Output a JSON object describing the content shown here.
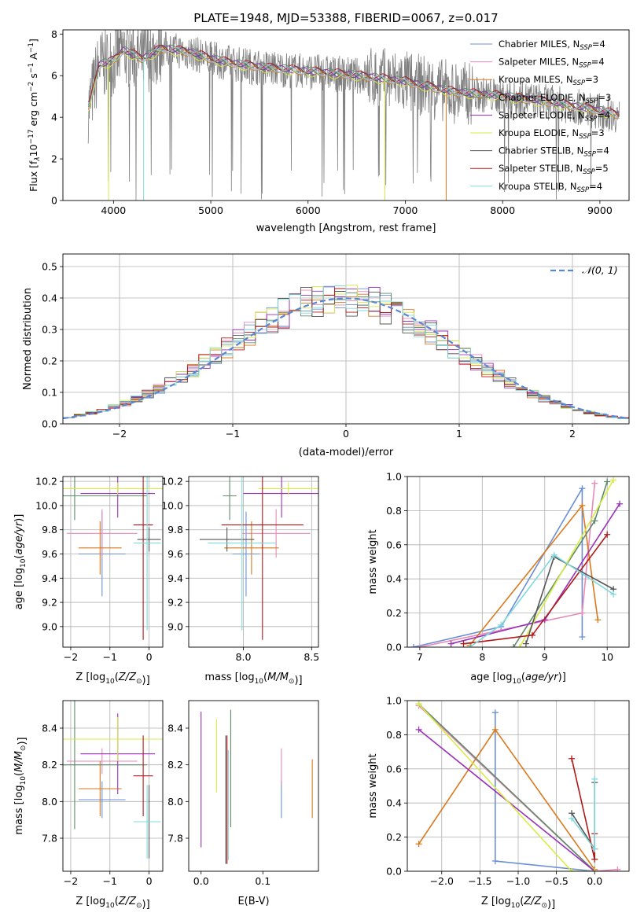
{
  "figure_title": "PLATE=1948, MJD=53388, FIBERID=0067, z=0.017",
  "colors": {
    "Chabrier MILES": "#6b8fd6",
    "Salpeter MILES": "#e88ab8",
    "Kroupa MILES": "#d9791c",
    "Chabrier ELODIE": "#5f8a6a",
    "Salpeter ELODIE": "#9b30b8",
    "Kroupa ELODIE": "#d8ec45",
    "Chabrier STELIB": "#555555",
    "Salpeter STELIB": "#b01818",
    "Kroupa STELIB": "#7fd9dc",
    "gaussian": "#5b86d4",
    "grid": "#b0b0b0"
  },
  "chart_data": [
    {
      "id": "spectrum",
      "type": "line",
      "xlabel": "wavelength [Angstrom, rest frame]",
      "ylabel_parts": [
        "Flux [f",
        "λ",
        "10",
        "−17",
        " erg cm",
        "−2",
        " s",
        "−1",
        " A",
        "−1",
        "]"
      ],
      "xlim": [
        3480,
        9300
      ],
      "ylim": [
        0,
        8.2
      ],
      "xticks": [
        4000,
        5000,
        6000,
        7000,
        8000,
        9000
      ],
      "yticks": [
        0,
        2,
        4,
        6,
        8
      ],
      "grid": false,
      "legend_position": "upper-right",
      "legend": [
        {
          "name": "Chabrier MILES",
          "nssp": "4"
        },
        {
          "name": "Salpeter MILES",
          "nssp": "4"
        },
        {
          "name": "Kroupa MILES",
          "nssp": "3"
        },
        {
          "name": "Chabrier ELODIE",
          "nssp": "3"
        },
        {
          "name": "Salpeter ELODIE",
          "nssp": "4"
        },
        {
          "name": "Kroupa ELODIE",
          "nssp": "3"
        },
        {
          "name": "Chabrier STELIB",
          "nssp": "4"
        },
        {
          "name": "Salpeter STELIB",
          "nssp": "5"
        },
        {
          "name": "Kroupa STELIB",
          "nssp": "4"
        }
      ],
      "data_envelope": {
        "wavelength": [
          3750,
          3850,
          4000,
          4100,
          4300,
          4500,
          4800,
          5000,
          5200,
          5500,
          6000,
          6500,
          7000,
          7500,
          8000,
          8500,
          9000,
          9200
        ],
        "flux": [
          4.5,
          6.5,
          6.7,
          7.2,
          6.8,
          7.3,
          7.1,
          6.8,
          6.6,
          6.4,
          6.2,
          6.0,
          5.7,
          5.2,
          5.0,
          4.7,
          4.3,
          4.1
        ]
      }
    },
    {
      "id": "residuals",
      "type": "histogram",
      "xlabel": "(data-model)/error",
      "ylabel": "Normed distribution",
      "xlim": [
        -2.5,
        2.5
      ],
      "ylim": [
        0,
        0.54
      ],
      "xticks": [
        -2,
        -1,
        0,
        1,
        2
      ],
      "yticks": [
        0.0,
        0.1,
        0.2,
        0.3,
        0.4,
        0.5
      ],
      "grid": true,
      "legend": [
        {
          "name": "𝒩(0, 1)",
          "style": "dashed"
        }
      ],
      "bin_width": 0.1,
      "gaussian": {
        "mean": 0,
        "sigma": 1
      }
    },
    {
      "id": "age_vs_Z",
      "type": "errorbar",
      "xlabel": "Z [log10(Z/Z⊙)]",
      "ylabel": "age  [log10(age/yr)]",
      "xlim": [
        -2.2,
        0.35
      ],
      "ylim": [
        8.83,
        10.24
      ],
      "xticks": [
        -2,
        -1,
        0
      ],
      "yticks": [
        9.0,
        9.2,
        9.4,
        9.6,
        9.8,
        10.0,
        10.2
      ],
      "grid": true,
      "points": [
        {
          "model": "Chabrier MILES",
          "x": -1.2,
          "xerr": 0.6,
          "y": 9.6,
          "yerr": 0.35
        },
        {
          "model": "Salpeter MILES",
          "x": -1.2,
          "xerr": 0.9,
          "y": 9.77,
          "yerr": 0.2
        },
        {
          "model": "Kroupa MILES",
          "x": -1.25,
          "xerr": 0.55,
          "y": 9.65,
          "yerr": 0.22
        },
        {
          "model": "Chabrier ELODIE",
          "x": -1.9,
          "xerr": 1.85,
          "y": 10.08,
          "yerr": 0.2
        },
        {
          "model": "Salpeter ELODIE",
          "x": -0.8,
          "xerr": 0.95,
          "y": 10.1,
          "yerr": 0.2
        },
        {
          "model": "Kroupa ELODIE",
          "x": -0.8,
          "xerr": 1.5,
          "y": 10.14,
          "yerr": 0.05
        },
        {
          "model": "Chabrier STELIB",
          "x": 0.0,
          "xerr": 0.3,
          "y": 9.72,
          "yerr": 0.1
        },
        {
          "model": "Salpeter STELIB",
          "x": -0.15,
          "xerr": 0.25,
          "y": 9.84,
          "yerr": 0.95
        },
        {
          "model": "Kroupa STELIB",
          "x": -0.05,
          "xerr": 0.35,
          "y": 9.69,
          "yerr": 0.72
        }
      ]
    },
    {
      "id": "age_vs_mass",
      "type": "errorbar",
      "xlabel": "mass [log10(M/M⊙)]",
      "ylabel": "",
      "xlim": [
        7.6,
        8.55
      ],
      "ylim": [
        8.83,
        10.24
      ],
      "xticks": [
        8.0,
        8.5
      ],
      "yticks": [
        9.0,
        9.2,
        9.4,
        9.6,
        9.8,
        10.0,
        10.2
      ],
      "grid": true,
      "points": [
        {
          "model": "Chabrier MILES",
          "x": 8.02,
          "xerr": 0.1,
          "y": 9.6,
          "yerr": 0.35
        },
        {
          "model": "Salpeter MILES",
          "x": 8.24,
          "xerr": 0.25,
          "y": 9.77,
          "yerr": 0.2
        },
        {
          "model": "Kroupa MILES",
          "x": 8.06,
          "xerr": 0.2,
          "y": 9.65,
          "yerr": 0.22
        },
        {
          "model": "Chabrier ELODIE",
          "x": 7.9,
          "xerr": 0.05,
          "y": 10.08,
          "yerr": 0.2
        },
        {
          "model": "Salpeter ELODIE",
          "x": 8.28,
          "xerr": 0.28,
          "y": 10.1,
          "yerr": 0.2
        },
        {
          "model": "Kroupa ELODIE",
          "x": 8.33,
          "xerr": 0.22,
          "y": 10.14,
          "yerr": 0.05
        },
        {
          "model": "Chabrier STELIB",
          "x": 7.88,
          "xerr": 0.2,
          "y": 9.72,
          "yerr": 0.1
        },
        {
          "model": "Salpeter STELIB",
          "x": 8.14,
          "xerr": 0.3,
          "y": 9.84,
          "yerr": 0.95
        },
        {
          "model": "Kroupa STELIB",
          "x": 7.99,
          "xerr": 0.25,
          "y": 9.69,
          "yerr": 0.72
        }
      ]
    },
    {
      "id": "weight_vs_age",
      "type": "line",
      "xlabel": "age  [log10(age/yr)]",
      "ylabel": "mass weight",
      "xlim": [
        6.8,
        10.35
      ],
      "ylim": [
        0,
        1.0
      ],
      "xticks": [
        7,
        8,
        9,
        10
      ],
      "yticks": [
        0.0,
        0.2,
        0.4,
        0.6,
        0.8,
        1.0
      ],
      "grid": true,
      "series": [
        {
          "model": "Chabrier MILES",
          "x": [
            6.9,
            8.3,
            9.6,
            9.6
          ],
          "y": [
            0.0,
            0.12,
            0.93,
            0.06
          ]
        },
        {
          "model": "Salpeter MILES",
          "x": [
            7.0,
            9.6,
            9.8
          ],
          "y": [
            0.0,
            0.2,
            0.96
          ]
        },
        {
          "model": "Kroupa MILES",
          "x": [
            7.8,
            9.6,
            9.85
          ],
          "y": [
            0.01,
            0.83,
            0.16
          ]
        },
        {
          "model": "Chabrier ELODIE",
          "x": [
            8.5,
            9.8,
            10.0
          ],
          "y": [
            0.0,
            0.74,
            0.97
          ]
        },
        {
          "model": "Salpeter ELODIE",
          "x": [
            7.5,
            9.0,
            10.2
          ],
          "y": [
            0.02,
            0.16,
            0.84
          ]
        },
        {
          "model": "Kroupa ELODIE",
          "x": [
            8.6,
            10.1
          ],
          "y": [
            0.0,
            0.98
          ]
        },
        {
          "model": "Chabrier STELIB",
          "x": [
            8.7,
            9.15,
            10.1
          ],
          "y": [
            0.02,
            0.53,
            0.34
          ]
        },
        {
          "model": "Salpeter STELIB",
          "x": [
            7.7,
            8.8,
            10.0
          ],
          "y": [
            0.02,
            0.07,
            0.66
          ]
        },
        {
          "model": "Kroupa STELIB",
          "x": [
            7.8,
            8.3,
            9.15,
            10.1
          ],
          "y": [
            0.0,
            0.13,
            0.54,
            0.31
          ]
        }
      ]
    },
    {
      "id": "mass_vs_Z",
      "type": "errorbar",
      "xlabel": "Z [log10(Z/Z⊙)]",
      "ylabel": "mass [log10(M/M⊙)]",
      "xlim": [
        -2.2,
        0.35
      ],
      "ylim": [
        7.62,
        8.55
      ],
      "xticks": [
        -2,
        -1,
        0
      ],
      "yticks": [
        7.8,
        8.0,
        8.2,
        8.4
      ],
      "grid": true,
      "points": [
        {
          "model": "Chabrier MILES",
          "x": -1.2,
          "xerr": 0.6,
          "y": 8.01,
          "yerr": 0.1
        },
        {
          "model": "Salpeter MILES",
          "x": -1.2,
          "xerr": 0.9,
          "y": 8.22,
          "yerr": 0.07
        },
        {
          "model": "Kroupa MILES",
          "x": -1.25,
          "xerr": 0.55,
          "y": 8.07,
          "yerr": 0.15
        },
        {
          "model": "Chabrier ELODIE",
          "x": -1.9,
          "xerr": 1.85,
          "y": 8.2,
          "yerr": 0.35
        },
        {
          "model": "Salpeter ELODIE",
          "x": -0.8,
          "xerr": 0.95,
          "y": 8.26,
          "yerr": 0.22
        },
        {
          "model": "Kroupa ELODIE",
          "x": -0.8,
          "xerr": 1.5,
          "y": 8.34,
          "yerr": 0.12
        },
        {
          "model": "Chabrier STELIB",
          "x": 0.0,
          "xerr": 0.3,
          "y": 7.89,
          "yerr": 0.2
        },
        {
          "model": "Salpeter STELIB",
          "x": -0.15,
          "xerr": 0.25,
          "y": 8.14,
          "yerr": 0.22
        },
        {
          "model": "Kroupa STELIB",
          "x": -0.05,
          "xerr": 0.35,
          "y": 7.89,
          "yerr": 0.2
        }
      ]
    },
    {
      "id": "mass_vs_EBV",
      "type": "errorbar",
      "xlabel": "E(B-V)",
      "ylabel": "",
      "xlim": [
        -0.02,
        0.19
      ],
      "ylim": [
        7.62,
        8.55
      ],
      "xticks": [
        0.0,
        0.1
      ],
      "yticks": [
        7.8,
        8.0,
        8.2,
        8.4
      ],
      "grid": false,
      "points": [
        {
          "model": "Salpeter ELODIE",
          "x": 0.0,
          "y": 8.12,
          "yerr": 0.37
        },
        {
          "model": "Kroupa ELODIE",
          "x": 0.025,
          "y": 8.25,
          "yerr": 0.2
        },
        {
          "model": "Chabrier STELIB",
          "x": 0.04,
          "y": 8.01,
          "yerr": 0.35
        },
        {
          "model": "Salpeter STELIB",
          "x": 0.042,
          "y": 8.01,
          "yerr": 0.35
        },
        {
          "model": "Kroupa STELIB",
          "x": 0.044,
          "y": 7.98,
          "yerr": 0.3
        },
        {
          "model": "Chabrier ELODIE",
          "x": 0.048,
          "y": 8.18,
          "yerr": 0.32
        },
        {
          "model": "Chabrier MILES",
          "x": 0.13,
          "y": 8.01,
          "yerr": 0.1
        },
        {
          "model": "Salpeter MILES",
          "x": 0.13,
          "y": 8.19,
          "yerr": 0.1
        },
        {
          "model": "Kroupa MILES",
          "x": 0.18,
          "y": 8.07,
          "yerr": 0.16
        }
      ]
    },
    {
      "id": "weight_vs_Z",
      "type": "line",
      "xlabel": "Z [log10(Z/Z⊙)]",
      "ylabel": "mass weight",
      "xlim": [
        -2.45,
        0.45
      ],
      "ylim": [
        0,
        1.0
      ],
      "xticks": [
        -2.0,
        -1.5,
        -1.0,
        -0.5,
        0.0
      ],
      "yticks": [
        0.0,
        0.2,
        0.4,
        0.6,
        0.8,
        1.0
      ],
      "grid": true,
      "series": [
        {
          "model": "Chabrier MILES",
          "x": [
            -1.3,
            -1.3,
            0.0
          ],
          "y": [
            0.93,
            0.06,
            0.0
          ]
        },
        {
          "model": "Salpeter MILES",
          "x": [
            -2.3,
            0.0,
            0.3
          ],
          "y": [
            0.97,
            0.0,
            0.01
          ]
        },
        {
          "model": "Kroupa MILES",
          "x": [
            -2.3,
            -1.3,
            0.0
          ],
          "y": [
            0.16,
            0.83,
            0.01
          ]
        },
        {
          "model": "Chabrier ELODIE",
          "x": [
            -2.3,
            0.0
          ],
          "y": [
            0.98,
            0.0
          ]
        },
        {
          "model": "Salpeter ELODIE",
          "x": [
            -2.3,
            0.0
          ],
          "y": [
            0.83,
            0.0
          ]
        },
        {
          "model": "Kroupa ELODIE",
          "x": [
            -2.3,
            -0.3,
            0.0
          ],
          "y": [
            0.98,
            0.0,
            0.0
          ]
        },
        {
          "model": "Chabrier STELIB",
          "x": [
            -0.3,
            0.0,
            0.0
          ],
          "y": [
            0.34,
            0.13,
            0.52
          ]
        },
        {
          "model": "Salpeter STELIB",
          "x": [
            -0.3,
            0.0,
            0.0
          ],
          "y": [
            0.66,
            0.07,
            0.22
          ]
        },
        {
          "model": "Kroupa STELIB",
          "x": [
            -0.3,
            0.0,
            0.0
          ],
          "y": [
            0.31,
            0.13,
            0.54
          ]
        }
      ]
    }
  ]
}
